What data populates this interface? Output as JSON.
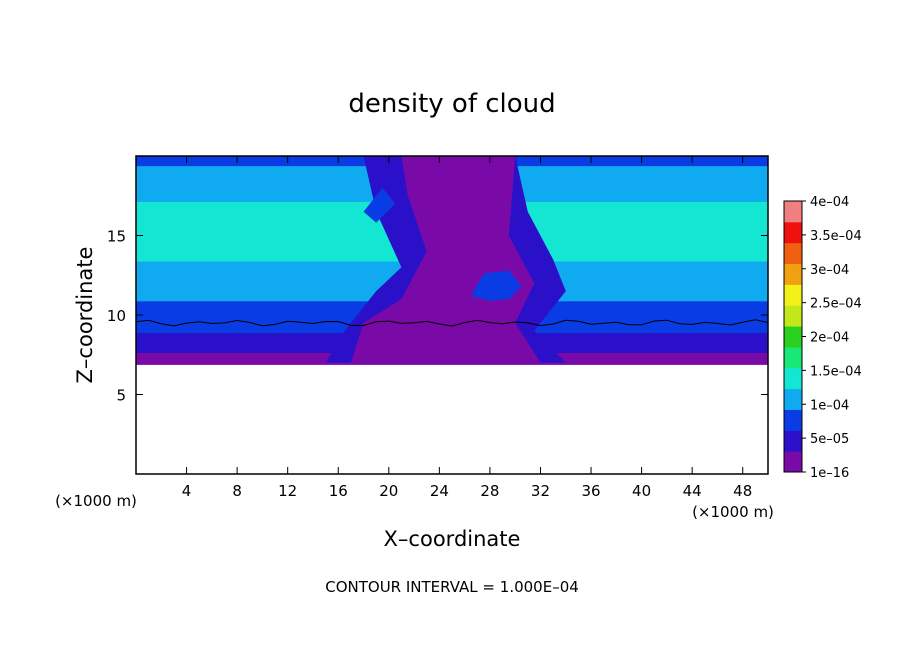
{
  "chart_data": {
    "type": "heatmap",
    "title": "density of cloud",
    "xlabel": "X–coordinate",
    "ylabel": "Z–coordinate",
    "x_unit": "(×1000 m)",
    "y_unit": "(×1000 m)",
    "footnote": "CONTOUR INTERVAL = 1.000E–04",
    "xlim": [
      0,
      50
    ],
    "ylim": [
      0,
      20
    ],
    "x_ticks": [
      4,
      8,
      12,
      16,
      20,
      24,
      28,
      32,
      36,
      40,
      44,
      48
    ],
    "x_tick_labels": [
      "4",
      "8",
      "12",
      "16",
      "20",
      "24",
      "28",
      "32",
      "36",
      "40",
      "44",
      "48"
    ],
    "y_ticks": [
      5,
      10,
      15
    ],
    "y_tick_labels": [
      "5",
      "10",
      "15"
    ],
    "colorbar": {
      "labels": [
        "1e–16",
        "5e–05",
        "1e–04",
        "1.5e–04",
        "2e–04",
        "2.5e–04",
        "3e–04",
        "3.5e–04",
        "4e–04"
      ],
      "values": [
        1e-16,
        5e-05,
        0.0001,
        0.00015,
        0.0002,
        0.00025,
        0.0003,
        0.00035,
        0.0004
      ],
      "colors": [
        "#7a0aa8",
        "#2a10c8",
        "#0a3ce6",
        "#10aaf0",
        "#14e6d4",
        "#18e878",
        "#2ad020",
        "#c2e81a",
        "#f2f21a",
        "#f0a010",
        "#f06010",
        "#f01010",
        "#f08080"
      ]
    },
    "field_summary": {
      "cloud_base_z": 6.9,
      "cloud_top_z": 20,
      "max_density_z": 14.5,
      "max_density_value": 0.000135,
      "convective_column_x": [
        15,
        34
      ],
      "contour_level_z": 9.5
    }
  }
}
